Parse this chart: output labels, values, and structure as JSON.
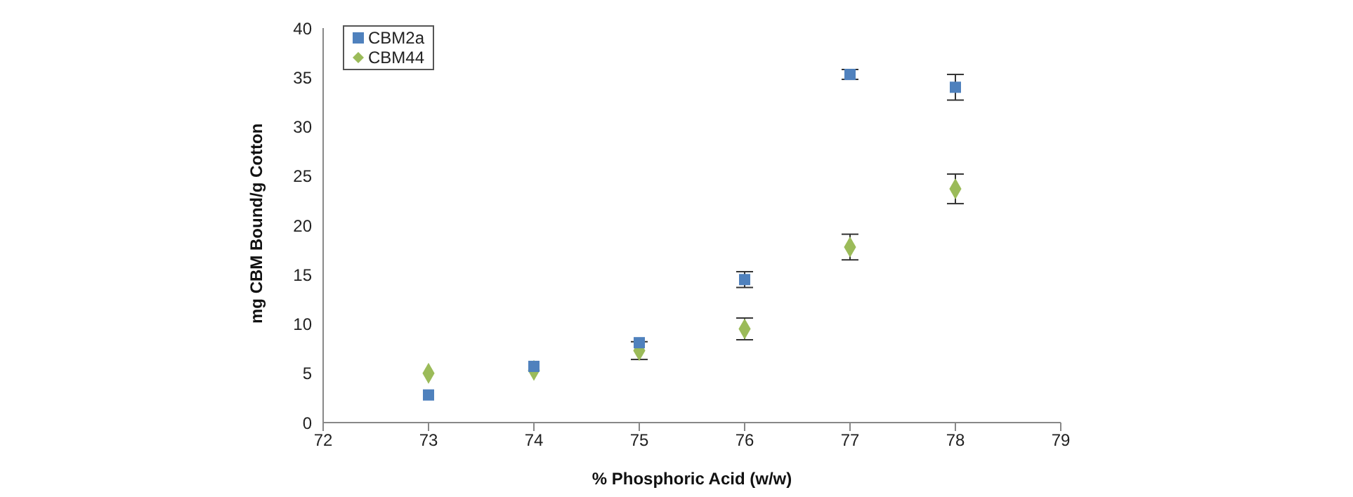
{
  "chart_data": {
    "type": "scatter",
    "xlabel": "% Phosphoric Acid (w/w)",
    "ylabel": "mg CBM Bound/g Cotton",
    "x": [
      73,
      74,
      75,
      76,
      77,
      78
    ],
    "series": [
      {
        "name": "CBM2a",
        "color": "#4f81bd",
        "marker": "square",
        "values": [
          2.8,
          5.7,
          8.1,
          14.5,
          35.3,
          34.0
        ],
        "errors": [
          null,
          null,
          null,
          0.8,
          0.5,
          1.3
        ]
      },
      {
        "name": "CBM44",
        "color": "#9bbb59",
        "marker": "diamond",
        "values": [
          5.0,
          5.3,
          7.3,
          9.5,
          17.8,
          23.7
        ],
        "errors": [
          null,
          null,
          0.9,
          1.1,
          1.3,
          1.5
        ]
      }
    ],
    "xlim": [
      72,
      79
    ],
    "xticks": [
      72,
      73,
      74,
      75,
      76,
      77,
      78,
      79
    ],
    "ylim": [
      0,
      40
    ],
    "yticks": [
      0,
      5,
      10,
      15,
      20,
      25,
      30,
      35,
      40
    ],
    "legend": "top left",
    "grid": false
  }
}
